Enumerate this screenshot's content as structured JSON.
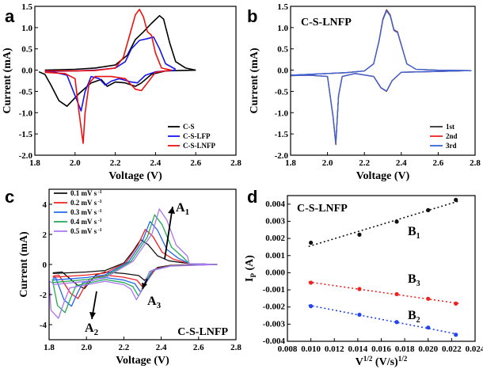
{
  "panel_labels": [
    "a",
    "b",
    "c",
    "d"
  ],
  "chart_data": [
    {
      "id": "a",
      "type": "line",
      "title": "",
      "xlabel": "Voltage (V)",
      "ylabel": "Current (mA)",
      "xlim": [
        1.8,
        2.8
      ],
      "ylim": [
        -2.0,
        1.5
      ],
      "xticks": [
        "1.8",
        "2.0",
        "2.2",
        "2.4",
        "2.6",
        "2.8"
      ],
      "yticks": [
        "-2.0",
        "-1.5",
        "-1.0",
        "-0.5",
        "0.0",
        "0.5",
        "1.0",
        "1.5"
      ],
      "legend_position": "bottom-right",
      "series": [
        {
          "name": "C-S",
          "color": "#000000",
          "forward": [
            [
              1.85,
              0.0
            ],
            [
              2.0,
              0.02
            ],
            [
              2.1,
              0.05
            ],
            [
              2.2,
              0.12
            ],
            [
              2.26,
              0.35
            ],
            [
              2.3,
              0.72
            ],
            [
              2.34,
              0.9
            ],
            [
              2.38,
              1.1
            ],
            [
              2.42,
              1.28
            ],
            [
              2.44,
              1.2
            ],
            [
              2.47,
              0.65
            ],
            [
              2.5,
              0.2
            ],
            [
              2.55,
              0.05
            ],
            [
              2.6,
              0.0
            ]
          ],
          "reverse": [
            [
              2.6,
              0.0
            ],
            [
              2.45,
              -0.02
            ],
            [
              2.38,
              -0.1
            ],
            [
              2.33,
              -0.3
            ],
            [
              2.3,
              -0.38
            ],
            [
              2.25,
              -0.3
            ],
            [
              2.2,
              -0.28
            ],
            [
              2.16,
              -0.38
            ],
            [
              2.13,
              -0.22
            ],
            [
              2.08,
              -0.3
            ],
            [
              2.02,
              -0.55
            ],
            [
              1.96,
              -0.85
            ],
            [
              1.92,
              -0.72
            ],
            [
              1.88,
              -0.35
            ],
            [
              1.85,
              -0.1
            ],
            [
              1.82,
              -0.04
            ]
          ]
        },
        {
          "name": "C-S-LFP",
          "color": "#1515ee",
          "forward": [
            [
              1.85,
              -0.03
            ],
            [
              2.0,
              -0.02
            ],
            [
              2.1,
              0.0
            ],
            [
              2.2,
              0.05
            ],
            [
              2.25,
              0.2
            ],
            [
              2.28,
              0.5
            ],
            [
              2.32,
              0.7
            ],
            [
              2.36,
              0.74
            ],
            [
              2.39,
              0.78
            ],
            [
              2.42,
              0.5
            ],
            [
              2.45,
              0.15
            ],
            [
              2.5,
              0.02
            ]
          ],
          "reverse": [
            [
              2.5,
              0.0
            ],
            [
              2.4,
              -0.04
            ],
            [
              2.35,
              -0.12
            ],
            [
              2.31,
              -0.3
            ],
            [
              2.28,
              -0.28
            ],
            [
              2.22,
              -0.2
            ],
            [
              2.18,
              -0.26
            ],
            [
              2.15,
              -0.35
            ],
            [
              2.12,
              -0.2
            ],
            [
              2.08,
              -0.15
            ],
            [
              2.05,
              -0.5
            ],
            [
              2.03,
              -0.96
            ],
            [
              2.0,
              -0.6
            ],
            [
              1.96,
              -0.12
            ],
            [
              1.9,
              -0.05
            ],
            [
              1.85,
              -0.03
            ]
          ]
        },
        {
          "name": "C-S-LNFP",
          "color": "#ee1111",
          "forward": [
            [
              1.85,
              -0.02
            ],
            [
              2.0,
              -0.02
            ],
            [
              2.1,
              -0.01
            ],
            [
              2.2,
              0.05
            ],
            [
              2.24,
              0.3
            ],
            [
              2.27,
              0.8
            ],
            [
              2.3,
              1.3
            ],
            [
              2.32,
              1.43
            ],
            [
              2.34,
              1.25
            ],
            [
              2.36,
              0.9
            ],
            [
              2.38,
              0.82
            ],
            [
              2.4,
              0.4
            ],
            [
              2.43,
              0.05
            ],
            [
              2.48,
              0.0
            ]
          ],
          "reverse": [
            [
              2.48,
              0.0
            ],
            [
              2.4,
              -0.05
            ],
            [
              2.36,
              -0.3
            ],
            [
              2.33,
              -0.48
            ],
            [
              2.3,
              -0.45
            ],
            [
              2.25,
              -0.2
            ],
            [
              2.18,
              -0.15
            ],
            [
              2.1,
              -0.15
            ],
            [
              2.07,
              -0.3
            ],
            [
              2.05,
              -1.0
            ],
            [
              2.04,
              -1.72
            ],
            [
              2.02,
              -1.0
            ],
            [
              2.0,
              -0.2
            ],
            [
              1.95,
              -0.08
            ],
            [
              1.85,
              -0.05
            ]
          ]
        }
      ]
    },
    {
      "id": "b",
      "type": "line",
      "title": "C-S-LNFP",
      "xlabel": "Voltage (V)",
      "ylabel": "Current (mA)",
      "xlim": [
        1.8,
        2.8
      ],
      "ylim": [
        -2.0,
        1.5
      ],
      "xticks": [
        "1.8",
        "2.0",
        "2.2",
        "2.4",
        "2.6",
        "2.8"
      ],
      "yticks": [
        "-2.0",
        "-1.5",
        "-1.0",
        "-0.5",
        "0.0",
        "0.5",
        "1.0",
        "1.5"
      ],
      "legend_position": "bottom-right",
      "series": [
        {
          "name": "1st",
          "color": "#333333",
          "scale": 1.0
        },
        {
          "name": "2nd",
          "color": "#ee2222",
          "scale": 0.99
        },
        {
          "name": "3rd",
          "color": "#3366dd",
          "scale": 0.98
        }
      ],
      "cycle": {
        "forward": [
          [
            1.8,
            -0.12
          ],
          [
            1.9,
            -0.1
          ],
          [
            2.0,
            -0.08
          ],
          [
            2.1,
            -0.06
          ],
          [
            2.2,
            -0.02
          ],
          [
            2.25,
            0.15
          ],
          [
            2.28,
            0.7
          ],
          [
            2.3,
            1.2
          ],
          [
            2.32,
            1.42
          ],
          [
            2.34,
            1.3
          ],
          [
            2.36,
            0.95
          ],
          [
            2.38,
            0.9
          ],
          [
            2.4,
            0.6
          ],
          [
            2.43,
            0.15
          ],
          [
            2.48,
            0.02
          ],
          [
            2.6,
            0.0
          ],
          [
            2.78,
            -0.01
          ]
        ],
        "reverse": [
          [
            2.78,
            -0.01
          ],
          [
            2.6,
            -0.03
          ],
          [
            2.4,
            -0.05
          ],
          [
            2.35,
            -0.25
          ],
          [
            2.32,
            -0.5
          ],
          [
            2.29,
            -0.42
          ],
          [
            2.25,
            -0.15
          ],
          [
            2.15,
            -0.08
          ],
          [
            2.08,
            -0.15
          ],
          [
            2.06,
            -0.6
          ],
          [
            2.045,
            -1.75
          ],
          [
            2.03,
            -1.1
          ],
          [
            2.0,
            -0.15
          ],
          [
            1.9,
            -0.12
          ],
          [
            1.8,
            -0.13
          ]
        ]
      }
    },
    {
      "id": "c",
      "type": "line",
      "title": "C-S-LNFP",
      "xlabel": "Voltage (V)",
      "ylabel": "Current (mA)",
      "xlim": [
        1.8,
        2.8
      ],
      "ylim": [
        -5,
        5
      ],
      "xticks": [
        "1.8",
        "2.0",
        "2.2",
        "2.4",
        "2.6",
        "2.8"
      ],
      "yticks": [
        "-4",
        "-2",
        "0",
        "2",
        "4"
      ],
      "legend_position": "top-left",
      "legend_unit": "mV s",
      "legend_exp": "-1",
      "series": [
        {
          "name": "0.1",
          "color": "#111111",
          "rate": 0.1
        },
        {
          "name": "0.2",
          "color": "#ee2222",
          "rate": 0.2
        },
        {
          "name": "0.3",
          "color": "#2266ee",
          "rate": 0.3
        },
        {
          "name": "0.4",
          "color": "#22aa55",
          "rate": 0.4
        },
        {
          "name": "0.5",
          "color": "#aa77ee",
          "rate": 0.5
        }
      ],
      "annotations": [
        {
          "main": "A",
          "sub": "1"
        },
        {
          "main": "A",
          "sub": "2"
        },
        {
          "main": "A",
          "sub": "3"
        }
      ]
    },
    {
      "id": "d",
      "type": "scatter",
      "title": "C-S-LNFP",
      "xlabel_main": "V",
      "xlabel_sup": "1/2",
      "xlabel_unit": "(V/s)",
      "xlabel_unit_sup": "1/2",
      "ylabel_main": "I",
      "ylabel_sub": "P",
      "ylabel_unit": "(A)",
      "xlim": [
        0.008,
        0.024
      ],
      "ylim": [
        -0.004,
        0.0045
      ],
      "xticks": [
        "0.008",
        "0.010",
        "0.012",
        "0.014",
        "0.016",
        "0.018",
        "0.020",
        "0.022",
        "0.024"
      ],
      "yticks": [
        "-0.004",
        "-0.003",
        "-0.002",
        "-0.001",
        "0.000",
        "0.001",
        "0.002",
        "0.003",
        "0.004"
      ],
      "series": [
        {
          "name": "B1",
          "label_main": "B",
          "label_sub": "1",
          "color": "#111111",
          "x": [
            0.01,
            0.01414,
            0.01732,
            0.02,
            0.02236
          ],
          "y": [
            0.00175,
            0.00222,
            0.00298,
            0.00365,
            0.00425
          ]
        },
        {
          "name": "B3",
          "label_main": "B",
          "label_sub": "3",
          "color": "#ee2222",
          "x": [
            0.01,
            0.01414,
            0.01732,
            0.02,
            0.02236
          ],
          "y": [
            -0.00058,
            -0.00095,
            -0.00125,
            -0.00152,
            -0.0018
          ]
        },
        {
          "name": "B2",
          "label_main": "B",
          "label_sub": "2",
          "color": "#2244ee",
          "x": [
            0.01,
            0.01414,
            0.01732,
            0.02,
            0.02236
          ],
          "y": [
            -0.00195,
            -0.00245,
            -0.00288,
            -0.0032,
            -0.00362
          ]
        }
      ]
    }
  ]
}
